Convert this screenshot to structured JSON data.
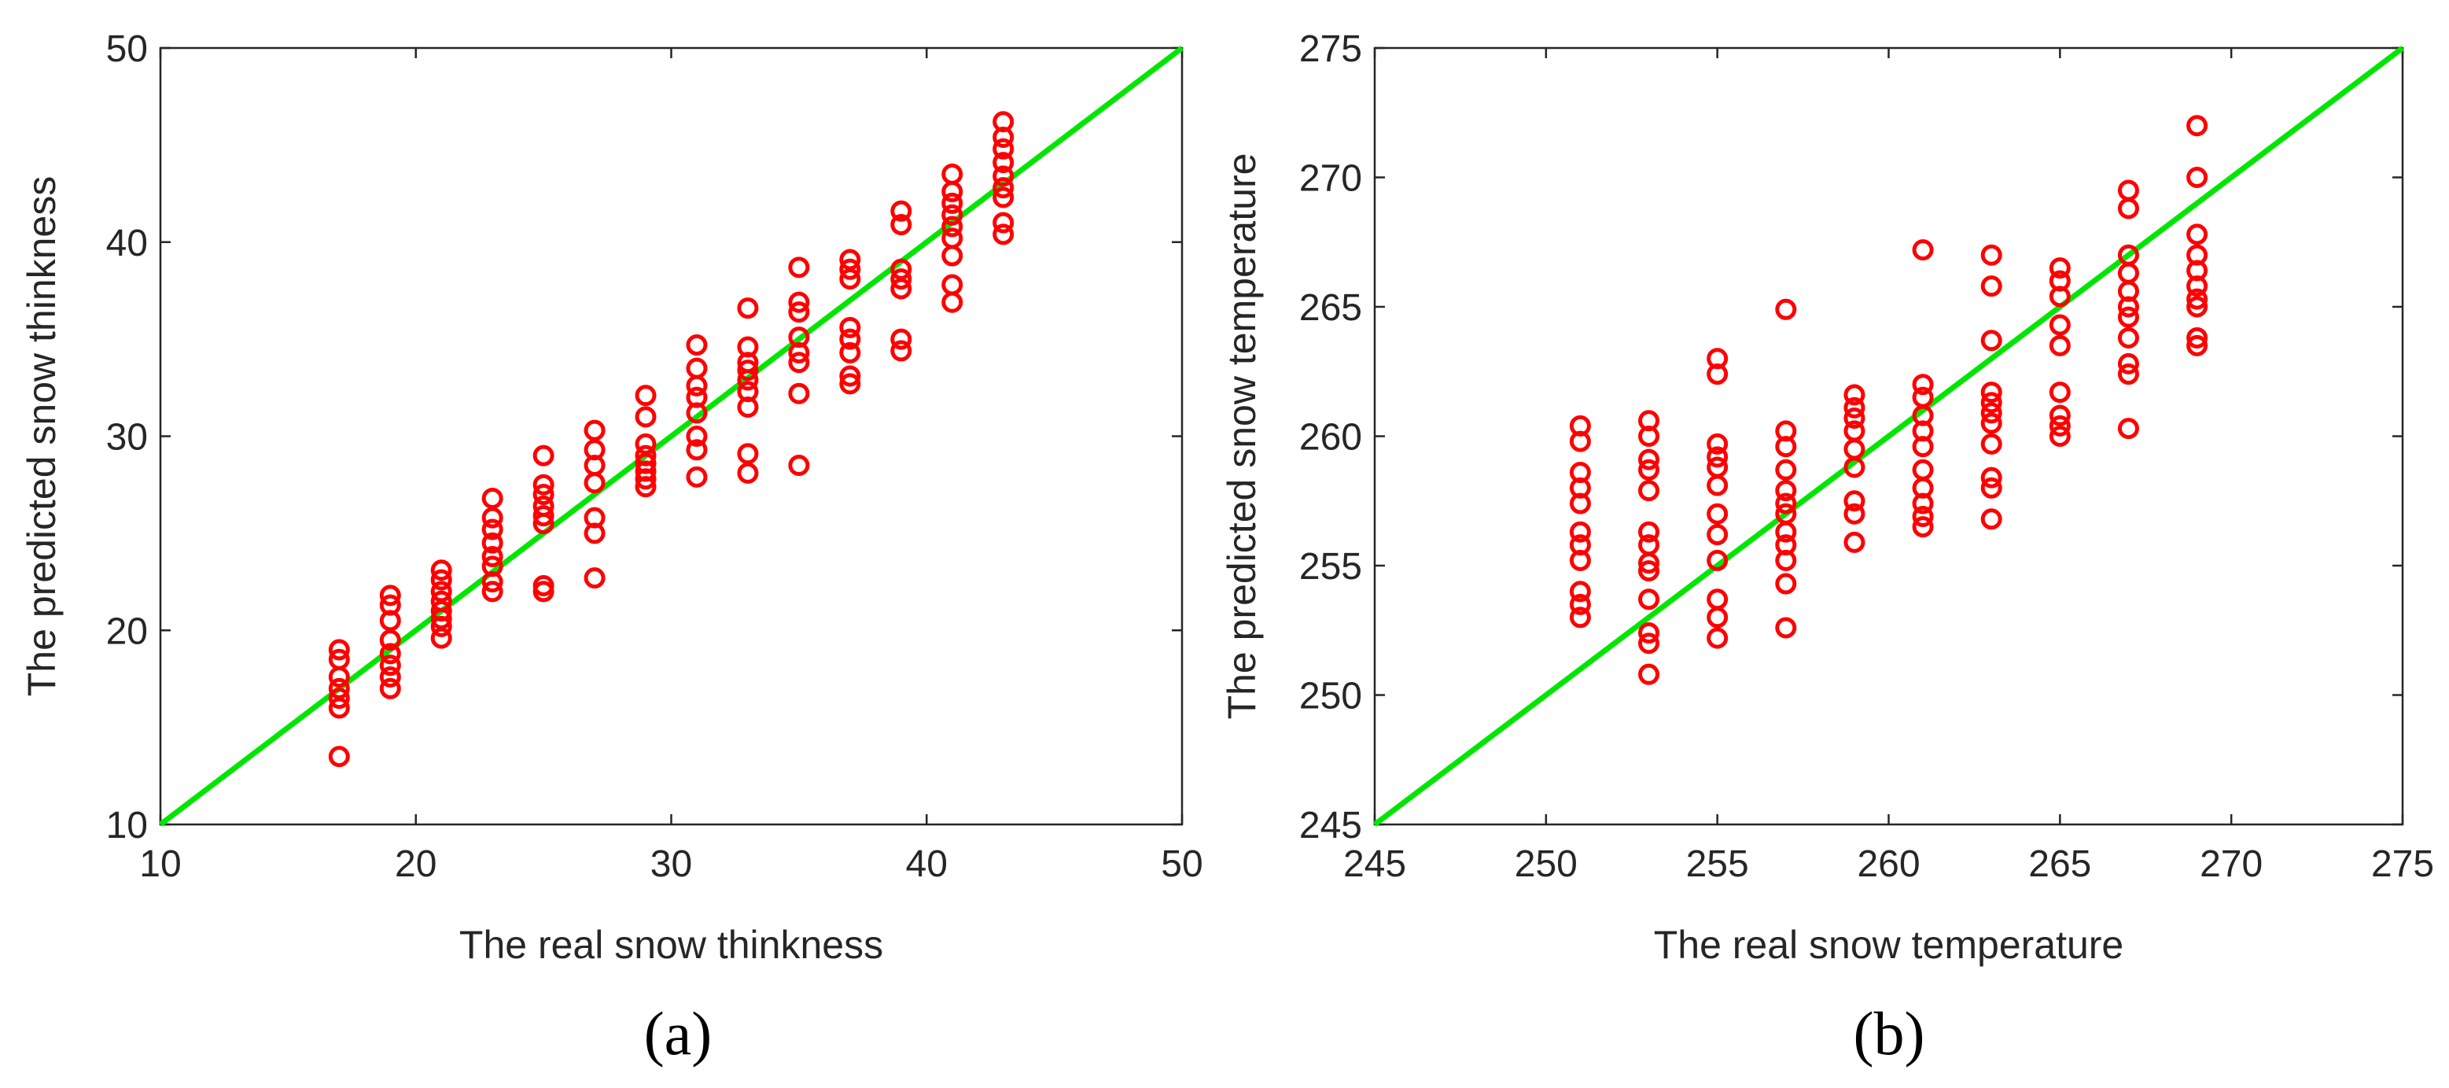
{
  "chart_data": [
    {
      "type": "scatter",
      "xlabel": "The real snow thinkness",
      "ylabel": "The predicted snow thinkness",
      "caption": "(a)",
      "xlim": [
        10,
        50
      ],
      "ylim": [
        10,
        50
      ],
      "xticks": [
        "10",
        "20",
        "30",
        "40",
        "50"
      ],
      "yticks": [
        "10",
        "20",
        "30",
        "40",
        "50"
      ],
      "grid": false,
      "marker_color": "#ff0000",
      "line_color": "#00e600",
      "reference_line": [
        [
          10,
          10
        ],
        [
          50,
          50
        ]
      ],
      "points": [
        [
          17,
          19.0
        ],
        [
          17,
          18.5
        ],
        [
          17,
          17.6
        ],
        [
          17,
          17.0
        ],
        [
          17,
          16.5
        ],
        [
          17,
          16.0
        ],
        [
          17,
          13.5
        ],
        [
          19,
          21.8
        ],
        [
          19,
          21.3
        ],
        [
          19,
          20.5
        ],
        [
          19,
          19.5
        ],
        [
          19,
          18.8
        ],
        [
          19,
          18.2
        ],
        [
          19,
          17.6
        ],
        [
          19,
          17.0
        ],
        [
          21,
          23.1
        ],
        [
          21,
          22.6
        ],
        [
          21,
          22.0
        ],
        [
          21,
          21.5
        ],
        [
          21,
          21.0
        ],
        [
          21,
          20.6
        ],
        [
          21,
          20.2
        ],
        [
          21,
          19.6
        ],
        [
          23,
          26.8
        ],
        [
          23,
          25.8
        ],
        [
          23,
          25.2
        ],
        [
          23,
          24.5
        ],
        [
          23,
          23.8
        ],
        [
          23,
          23.3
        ],
        [
          23,
          22.5
        ],
        [
          23,
          22.0
        ],
        [
          25,
          29.0
        ],
        [
          25,
          27.5
        ],
        [
          25,
          27.0
        ],
        [
          25,
          26.4
        ],
        [
          25,
          25.9
        ],
        [
          25,
          25.5
        ],
        [
          25,
          22.3
        ],
        [
          25,
          22.0
        ],
        [
          27,
          30.3
        ],
        [
          27,
          29.3
        ],
        [
          27,
          28.5
        ],
        [
          27,
          27.6
        ],
        [
          27,
          25.8
        ],
        [
          27,
          25.0
        ],
        [
          27,
          22.7
        ],
        [
          29,
          32.1
        ],
        [
          29,
          31.0
        ],
        [
          29,
          29.6
        ],
        [
          29,
          29.0
        ],
        [
          29,
          28.6
        ],
        [
          29,
          28.2
        ],
        [
          29,
          27.8
        ],
        [
          29,
          27.4
        ],
        [
          31,
          34.7
        ],
        [
          31,
          33.5
        ],
        [
          31,
          32.6
        ],
        [
          31,
          32.0
        ],
        [
          31,
          31.2
        ],
        [
          31,
          30.0
        ],
        [
          31,
          29.3
        ],
        [
          31,
          27.9
        ],
        [
          33,
          36.6
        ],
        [
          33,
          34.6
        ],
        [
          33,
          33.8
        ],
        [
          33,
          33.4
        ],
        [
          33,
          32.9
        ],
        [
          33,
          32.3
        ],
        [
          33,
          31.5
        ],
        [
          33,
          29.1
        ],
        [
          33,
          28.1
        ],
        [
          35,
          38.7
        ],
        [
          35,
          36.9
        ],
        [
          35,
          36.4
        ],
        [
          35,
          35.1
        ],
        [
          35,
          34.3
        ],
        [
          35,
          33.8
        ],
        [
          35,
          32.2
        ],
        [
          35,
          28.5
        ],
        [
          37,
          39.1
        ],
        [
          37,
          38.6
        ],
        [
          37,
          38.1
        ],
        [
          37,
          35.6
        ],
        [
          37,
          35.0
        ],
        [
          37,
          34.3
        ],
        [
          37,
          33.1
        ],
        [
          37,
          32.7
        ],
        [
          39,
          41.6
        ],
        [
          39,
          40.9
        ],
        [
          39,
          38.6
        ],
        [
          39,
          38.1
        ],
        [
          39,
          37.6
        ],
        [
          39,
          35.0
        ],
        [
          39,
          34.4
        ],
        [
          41,
          43.5
        ],
        [
          41,
          42.6
        ],
        [
          41,
          42.0
        ],
        [
          41,
          41.4
        ],
        [
          41,
          40.8
        ],
        [
          41,
          40.2
        ],
        [
          41,
          39.3
        ],
        [
          41,
          37.8
        ],
        [
          41,
          36.9
        ],
        [
          43,
          46.2
        ],
        [
          43,
          45.4
        ],
        [
          43,
          44.8
        ],
        [
          43,
          44.1
        ],
        [
          43,
          43.4
        ],
        [
          43,
          42.8
        ],
        [
          43,
          42.3
        ],
        [
          43,
          41.0
        ],
        [
          43,
          40.4
        ]
      ]
    },
    {
      "type": "scatter",
      "xlabel": "The real snow temperature",
      "ylabel": "The predicted snow temperature",
      "caption": "(b)",
      "xlim": [
        245,
        275
      ],
      "ylim": [
        245,
        275
      ],
      "xticks": [
        "245",
        "250",
        "255",
        "260",
        "265",
        "270",
        "275"
      ],
      "yticks": [
        "245",
        "250",
        "255",
        "260",
        "265",
        "270",
        "275"
      ],
      "grid": false,
      "marker_color": "#ff0000",
      "line_color": "#00e600",
      "reference_line": [
        [
          245,
          245
        ],
        [
          275,
          275
        ]
      ],
      "points": [
        [
          251,
          260.4
        ],
        [
          251,
          259.8
        ],
        [
          251,
          258.6
        ],
        [
          251,
          258.0
        ],
        [
          251,
          257.4
        ],
        [
          251,
          256.3
        ],
        [
          251,
          255.8
        ],
        [
          251,
          255.2
        ],
        [
          251,
          254.0
        ],
        [
          251,
          253.5
        ],
        [
          251,
          253.0
        ],
        [
          253,
          260.6
        ],
        [
          253,
          260.0
        ],
        [
          253,
          259.1
        ],
        [
          253,
          258.7
        ],
        [
          253,
          257.9
        ],
        [
          253,
          256.3
        ],
        [
          253,
          255.8
        ],
        [
          253,
          255.1
        ],
        [
          253,
          254.8
        ],
        [
          253,
          253.7
        ],
        [
          253,
          252.4
        ],
        [
          253,
          252.0
        ],
        [
          253,
          250.8
        ],
        [
          255,
          263.0
        ],
        [
          255,
          262.4
        ],
        [
          255,
          259.7
        ],
        [
          255,
          259.2
        ],
        [
          255,
          258.8
        ],
        [
          255,
          258.1
        ],
        [
          255,
          257.0
        ],
        [
          255,
          256.2
        ],
        [
          255,
          255.2
        ],
        [
          255,
          253.7
        ],
        [
          255,
          253.0
        ],
        [
          255,
          252.2
        ],
        [
          257,
          264.9
        ],
        [
          257,
          260.2
        ],
        [
          257,
          259.6
        ],
        [
          257,
          258.7
        ],
        [
          257,
          257.9
        ],
        [
          257,
          257.4
        ],
        [
          257,
          257.0
        ],
        [
          257,
          256.3
        ],
        [
          257,
          255.8
        ],
        [
          257,
          255.2
        ],
        [
          257,
          254.3
        ],
        [
          257,
          252.6
        ],
        [
          259,
          261.6
        ],
        [
          259,
          261.1
        ],
        [
          259,
          260.7
        ],
        [
          259,
          260.2
        ],
        [
          259,
          259.5
        ],
        [
          259,
          258.8
        ],
        [
          259,
          257.5
        ],
        [
          259,
          257.0
        ],
        [
          259,
          255.9
        ],
        [
          261,
          267.2
        ],
        [
          261,
          262.0
        ],
        [
          261,
          261.5
        ],
        [
          261,
          260.8
        ],
        [
          261,
          260.2
        ],
        [
          261,
          259.6
        ],
        [
          261,
          258.7
        ],
        [
          261,
          258.0
        ],
        [
          261,
          257.4
        ],
        [
          261,
          256.9
        ],
        [
          261,
          256.5
        ],
        [
          263,
          267.0
        ],
        [
          263,
          265.8
        ],
        [
          263,
          263.7
        ],
        [
          263,
          261.7
        ],
        [
          263,
          261.3
        ],
        [
          263,
          260.9
        ],
        [
          263,
          260.5
        ],
        [
          263,
          259.7
        ],
        [
          263,
          258.4
        ],
        [
          263,
          258.0
        ],
        [
          263,
          256.8
        ],
        [
          265,
          266.5
        ],
        [
          265,
          266.0
        ],
        [
          265,
          265.4
        ],
        [
          265,
          264.3
        ],
        [
          265,
          263.5
        ],
        [
          265,
          261.7
        ],
        [
          265,
          260.8
        ],
        [
          265,
          260.4
        ],
        [
          265,
          260.0
        ],
        [
          267,
          269.5
        ],
        [
          267,
          268.8
        ],
        [
          267,
          267.0
        ],
        [
          267,
          266.3
        ],
        [
          267,
          265.6
        ],
        [
          267,
          265.0
        ],
        [
          267,
          264.6
        ],
        [
          267,
          263.8
        ],
        [
          267,
          262.8
        ],
        [
          267,
          262.4
        ],
        [
          267,
          260.3
        ],
        [
          269,
          272.0
        ],
        [
          269,
          270.0
        ],
        [
          269,
          267.8
        ],
        [
          269,
          267.0
        ],
        [
          269,
          266.4
        ],
        [
          269,
          265.8
        ],
        [
          269,
          265.3
        ],
        [
          269,
          265.0
        ],
        [
          269,
          263.8
        ],
        [
          269,
          263.5
        ]
      ]
    }
  ]
}
